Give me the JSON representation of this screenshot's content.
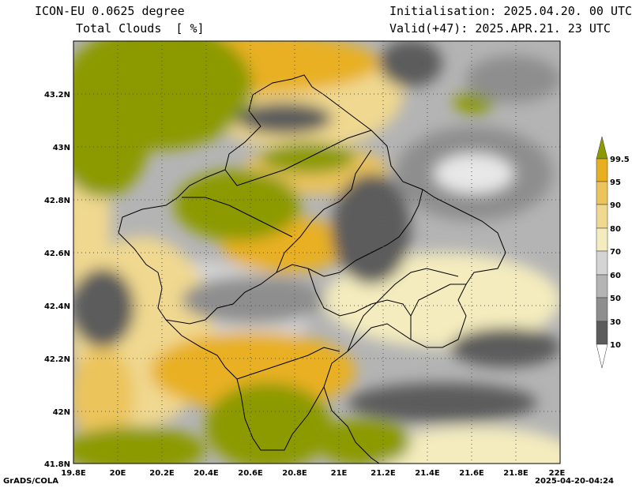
{
  "header": {
    "model": "ICON-EU 0.0625 degree",
    "parameter": "Total Clouds  [ %]",
    "initialisation": "Initialisation: 2025.04.20. 00 UTC",
    "valid": "Valid(+47): 2025.APR.21. 23 UTC"
  },
  "axes": {
    "x_ticks": [
      "19.8E",
      "20E",
      "20.2E",
      "20.4E",
      "20.6E",
      "20.8E",
      "21E",
      "21.2E",
      "21.4E",
      "21.6E",
      "21.8E",
      "22E"
    ],
    "y_ticks": [
      "43.2N",
      "43N",
      "42.8N",
      "42.6N",
      "42.4N",
      "42.2N",
      "42N",
      "41.8N"
    ]
  },
  "legend": {
    "labels": [
      "99.5",
      "95",
      "90",
      "80",
      "70",
      "60",
      "50",
      "30",
      "10"
    ],
    "colors": [
      "#8c9a00",
      "#e8b020",
      "#ecc45c",
      "#f0d890",
      "#f4ecbe",
      "#d4d4d4",
      "#b4b4b4",
      "#8e8e8e",
      "#5c5c5c",
      "#ffffff"
    ]
  },
  "footer": {
    "left": "GrADS/COLA",
    "right": "2025-04-20-04:24"
  }
}
